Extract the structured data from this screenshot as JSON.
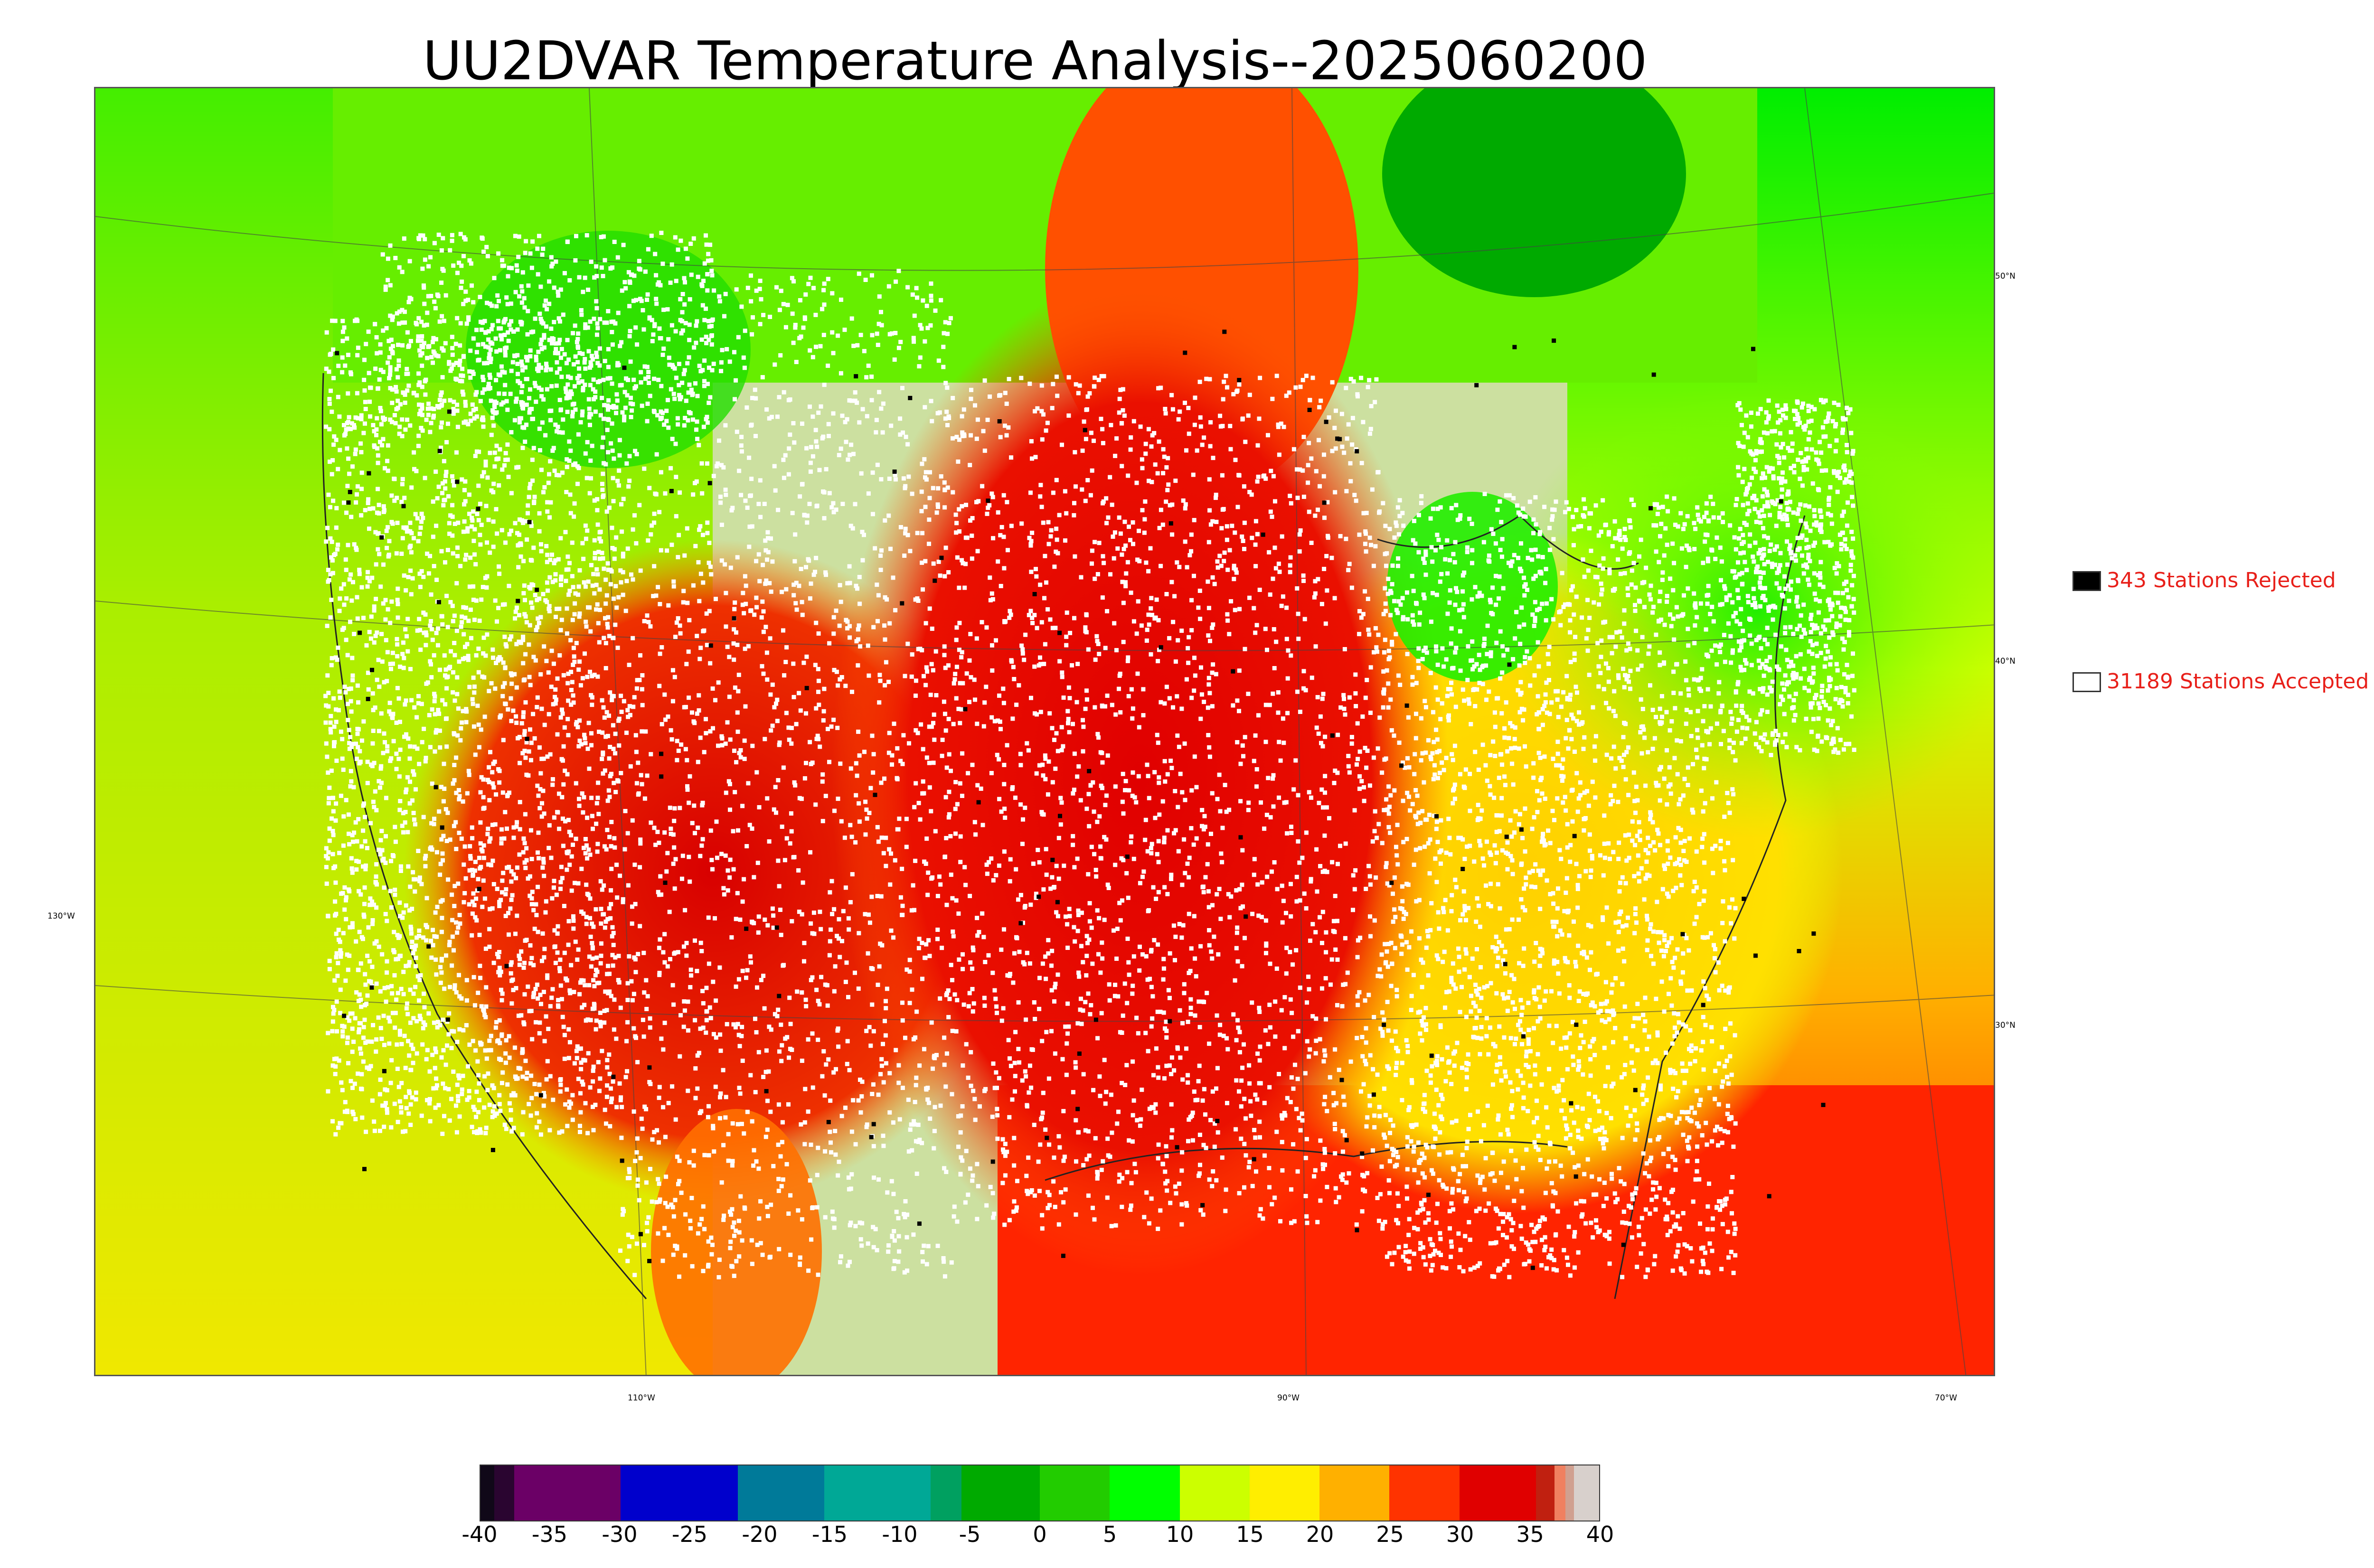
{
  "title": "UU2DVAR Temperature Analysis--2025060200",
  "legend": {
    "rejected": {
      "label": "343 Stations Rejected",
      "swatch_color": "#000000",
      "text_color": "#e8201a"
    },
    "accepted": {
      "label": "31189 Stations Accepted",
      "swatch_color": "#ffffff",
      "text_color": "#e8201a"
    }
  },
  "map": {
    "lat_labels": [
      "50°N",
      "40°N",
      "30°N"
    ],
    "lon_labels": [
      "130°W",
      "110°W",
      "90°W",
      "70°W"
    ]
  },
  "colorbar": {
    "ticks": [
      "-40",
      "-35",
      "-30",
      "-25",
      "-20",
      "-15",
      "-10",
      "-5",
      "0",
      "5",
      "10",
      "15",
      "20",
      "25",
      "30",
      "35",
      "40"
    ],
    "min": -40,
    "max": 40,
    "segments": [
      {
        "from": -40,
        "to": -39,
        "color": "#100818"
      },
      {
        "from": -39,
        "to": -37.6,
        "color": "#2a0530"
      },
      {
        "from": -37.6,
        "to": -30,
        "color": "#6b0066"
      },
      {
        "from": -30,
        "to": -21.6,
        "color": "#0000cc"
      },
      {
        "from": -21.6,
        "to": -15.4,
        "color": "#007a99"
      },
      {
        "from": -15.4,
        "to": -7.8,
        "color": "#00a896"
      },
      {
        "from": -7.8,
        "to": -5.6,
        "color": "#00a060"
      },
      {
        "from": -5.6,
        "to": 0,
        "color": "#00aa00"
      },
      {
        "from": 0,
        "to": 5,
        "color": "#22cc00"
      },
      {
        "from": 5,
        "to": 10,
        "color": "#00ff00"
      },
      {
        "from": 10,
        "to": 15,
        "color": "#ccff00"
      },
      {
        "from": 15,
        "to": 20,
        "color": "#ffee00"
      },
      {
        "from": 20,
        "to": 25,
        "color": "#ffb000"
      },
      {
        "from": 25,
        "to": 30,
        "color": "#ff3300"
      },
      {
        "from": 30,
        "to": 35.5,
        "color": "#e00000"
      },
      {
        "from": 35.5,
        "to": 36.8,
        "color": "#c02010"
      },
      {
        "from": 36.8,
        "to": 37.6,
        "color": "#f08060"
      },
      {
        "from": 37.6,
        "to": 38.2,
        "color": "#d0a090"
      },
      {
        "from": 38.2,
        "to": 40,
        "color": "#d8d0cc"
      }
    ]
  },
  "field_colors": {
    "ocean_pacific": "#c8ee00",
    "ocean_gulf": "#ff2a00",
    "canada_north": "#22dd00",
    "hudson_bay": "#00aa00",
    "plains_hot": "#e00000",
    "east_warm": "#ffcc00",
    "west_hot": "#dd1100",
    "northeast": "#44ee00"
  }
}
